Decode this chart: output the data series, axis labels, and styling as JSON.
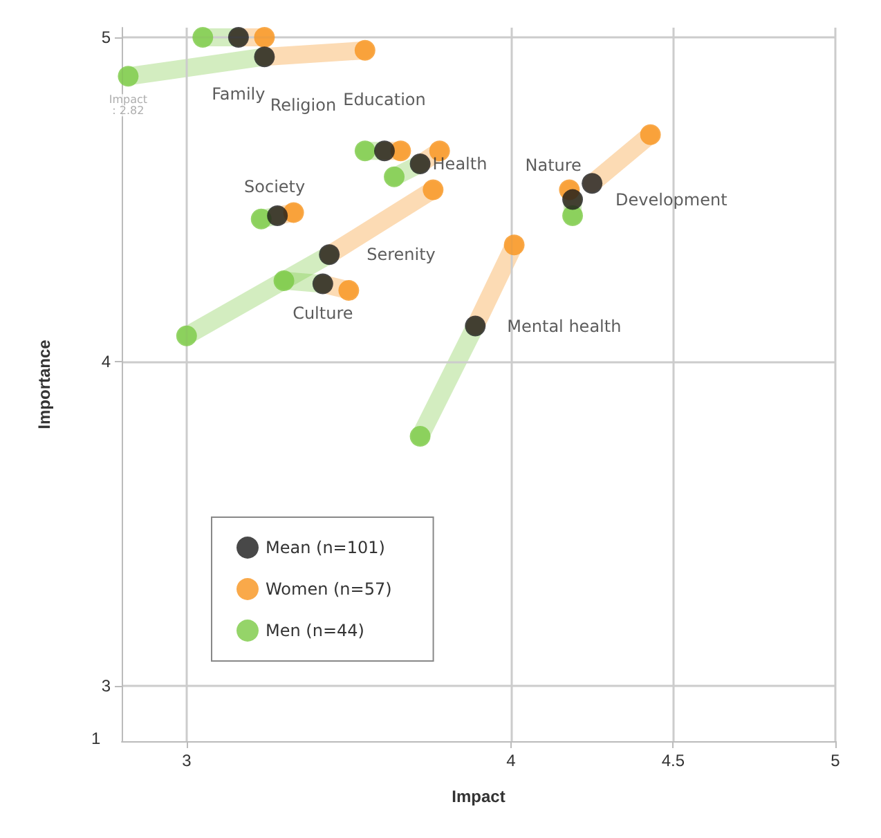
{
  "chart_data": {
    "type": "scatter",
    "xlabel": "Impact",
    "ylabel": "Importance",
    "series": [
      {
        "name": "Men (n=44)",
        "color": "#7ac943",
        "x": [
          3.05,
          2.82,
          3.55,
          3.64,
          3.23,
          3.0,
          3.3,
          3.72,
          null,
          4.19
        ],
        "values": [
          5.0,
          4.88,
          4.65,
          4.57,
          4.44,
          4.08,
          4.25,
          3.77,
          null,
          4.45
        ]
      },
      {
        "name": "Women (n=57)",
        "color": "#f7941d",
        "x": [
          3.24,
          3.55,
          3.66,
          3.78,
          3.33,
          3.76,
          3.5,
          4.01,
          4.43,
          4.18
        ],
        "values": [
          5.0,
          4.96,
          4.65,
          4.65,
          4.46,
          4.53,
          4.22,
          4.36,
          4.7,
          4.53
        ]
      },
      {
        "name": "Mean (n=101)",
        "color": "#1a1a1a",
        "x": [
          3.16,
          3.24,
          3.61,
          3.72,
          3.28,
          3.44,
          3.42,
          3.89,
          4.25,
          4.19
        ],
        "values": [
          5.0,
          4.94,
          4.65,
          4.61,
          4.45,
          4.33,
          4.24,
          4.11,
          4.55,
          4.5
        ]
      }
    ],
    "annotations": [
      {
        "text": "Family",
        "x": 3.16,
        "y": 5.0
      },
      {
        "text": "Religion",
        "x": 3.24,
        "y": 4.94
      },
      {
        "text": "Education",
        "x": 3.61,
        "y": 4.65
      },
      {
        "text": "Health",
        "x": 3.72,
        "y": 4.61
      },
      {
        "text": "Society",
        "x": 3.28,
        "y": 4.45
      },
      {
        "text": "Serenity",
        "x": 3.44,
        "y": 4.33
      },
      {
        "text": "Culture",
        "x": 3.42,
        "y": 4.24
      },
      {
        "text": "Mental health",
        "x": 3.89,
        "y": 4.11
      },
      {
        "text": "Nature",
        "x": 4.25,
        "y": 4.55
      },
      {
        "text": "Development",
        "x": 4.19,
        "y": 4.5
      },
      {
        "text": "Impact: 2.82",
        "x": 2.82,
        "y": 4.88
      },
      "1"
    ],
    "xlim": [
      2.8,
      5.0
    ],
    "xticks": [
      3,
      4,
      4.5,
      5
    ],
    "ylim": [
      2.83,
      5.03
    ],
    "yticks": [
      3,
      4,
      5
    ],
    "grid": true,
    "legend": "bottom left",
    "marker": "circle"
  }
}
